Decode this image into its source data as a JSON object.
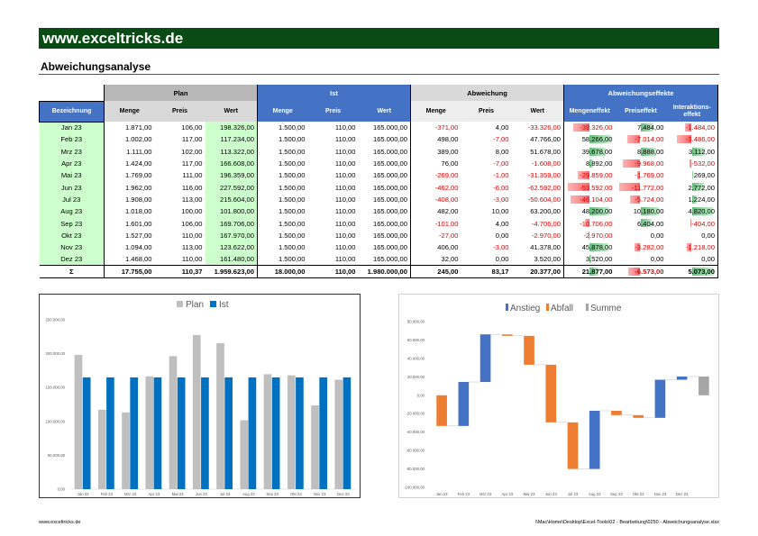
{
  "header": {
    "site": "www.exceltricks.de",
    "title": "Abweichungsanalyse"
  },
  "table": {
    "groups": {
      "plan": "Plan",
      "ist": "Ist",
      "abw": "Abweichung",
      "eff": "Abweichungseffekte"
    },
    "sub": {
      "bez": "Bezeichnung",
      "plan": [
        "Menge",
        "Preis",
        "Wert"
      ],
      "ist": [
        "Menge",
        "Preis",
        "Wert"
      ],
      "abw": [
        "Menge",
        "Preis",
        "Wert"
      ],
      "eff": [
        "Mengeneffekt",
        "Preiseffekt",
        "Interaktions-effekt"
      ]
    },
    "rows": [
      {
        "m": "Jan 23",
        "pm": "1.871,00",
        "pp": "106,00",
        "pw": "198.326,00",
        "im": "1.500,00",
        "ip": "110,00",
        "iw": "165.000,00",
        "am": "-371,00",
        "ap": "4,00",
        "aw": "-33.326,00",
        "me": "-39.326,00",
        "pe": "7.484,00",
        "ie": "-1.484,00",
        "mev": -39326,
        "pev": 7484,
        "iev": -1484
      },
      {
        "m": "Feb 23",
        "pm": "1.002,00",
        "pp": "117,00",
        "pw": "117.234,00",
        "im": "1.500,00",
        "ip": "110,00",
        "iw": "165.000,00",
        "am": "498,00",
        "ap": "-7,00",
        "aw": "47.766,00",
        "me": "58.266,00",
        "pe": "-7.014,00",
        "ie": "-3.486,00",
        "mev": 58266,
        "pev": -7014,
        "iev": -3486
      },
      {
        "m": "Mrz 23",
        "pm": "1.111,00",
        "pp": "102,00",
        "pw": "113.322,00",
        "im": "1.500,00",
        "ip": "110,00",
        "iw": "165.000,00",
        "am": "389,00",
        "ap": "8,00",
        "aw": "51.678,00",
        "me": "39.678,00",
        "pe": "8.888,00",
        "ie": "3.112,00",
        "mev": 39678,
        "pev": 8888,
        "iev": 3112
      },
      {
        "m": "Apr 23",
        "pm": "1.424,00",
        "pp": "117,00",
        "pw": "166.608,00",
        "im": "1.500,00",
        "ip": "110,00",
        "iw": "165.000,00",
        "am": "76,00",
        "ap": "-7,00",
        "aw": "-1.608,00",
        "me": "8.892,00",
        "pe": "-9.968,00",
        "ie": "-532,00",
        "mev": 8892,
        "pev": -9968,
        "iev": -532
      },
      {
        "m": "Mai 23",
        "pm": "1.769,00",
        "pp": "111,00",
        "pw": "196.359,00",
        "im": "1.500,00",
        "ip": "110,00",
        "iw": "165.000,00",
        "am": "-269,00",
        "ap": "-1,00",
        "aw": "-31.359,00",
        "me": "-29.859,00",
        "pe": "-1.769,00",
        "ie": "269,00",
        "mev": -29859,
        "pev": -1769,
        "iev": 269
      },
      {
        "m": "Jun 23",
        "pm": "1.962,00",
        "pp": "116,00",
        "pw": "227.592,00",
        "im": "1.500,00",
        "ip": "110,00",
        "iw": "165.000,00",
        "am": "-462,00",
        "ap": "-6,00",
        "aw": "-62.592,00",
        "me": "-53.592,00",
        "pe": "-11.772,00",
        "ie": "2.772,00",
        "mev": -53592,
        "pev": -11772,
        "iev": 2772
      },
      {
        "m": "Jul 23",
        "pm": "1.908,00",
        "pp": "113,00",
        "pw": "215.604,00",
        "im": "1.500,00",
        "ip": "110,00",
        "iw": "165.000,00",
        "am": "-408,00",
        "ap": "-3,00",
        "aw": "-50.604,00",
        "me": "-46.104,00",
        "pe": "-5.724,00",
        "ie": "1.224,00",
        "mev": -46104,
        "pev": -5724,
        "iev": 1224
      },
      {
        "m": "Aug 23",
        "pm": "1.018,00",
        "pp": "100,00",
        "pw": "101.800,00",
        "im": "1.500,00",
        "ip": "110,00",
        "iw": "165.000,00",
        "am": "482,00",
        "ap": "10,00",
        "aw": "63.200,00",
        "me": "48.200,00",
        "pe": "10.180,00",
        "ie": "4.820,00",
        "mev": 48200,
        "pev": 10180,
        "iev": 4820
      },
      {
        "m": "Sep 23",
        "pm": "1.601,00",
        "pp": "106,00",
        "pw": "169.706,00",
        "im": "1.500,00",
        "ip": "110,00",
        "iw": "165.000,00",
        "am": "-101,00",
        "ap": "4,00",
        "aw": "-4.706,00",
        "me": "-10.706,00",
        "pe": "6.404,00",
        "ie": "-404,00",
        "mev": -10706,
        "pev": 6404,
        "iev": -404
      },
      {
        "m": "Okt 23",
        "pm": "1.527,00",
        "pp": "110,00",
        "pw": "167.970,00",
        "im": "1.500,00",
        "ip": "110,00",
        "iw": "165.000,00",
        "am": "-27,00",
        "ap": "0,00",
        "aw": "-2.970,00",
        "me": "-2.970,00",
        "pe": "0,00",
        "ie": "0,00",
        "mev": -2970,
        "pev": 0,
        "iev": 0
      },
      {
        "m": "Nov 23",
        "pm": "1.094,00",
        "pp": "113,00",
        "pw": "123.622,00",
        "im": "1.500,00",
        "ip": "110,00",
        "iw": "165.000,00",
        "am": "406,00",
        "ap": "-3,00",
        "aw": "41.378,00",
        "me": "45.878,00",
        "pe": "-3.282,00",
        "ie": "-1.218,00",
        "mev": 45878,
        "pev": -3282,
        "iev": -1218
      },
      {
        "m": "Dez 23",
        "pm": "1.468,00",
        "pp": "110,00",
        "pw": "161.480,00",
        "im": "1.500,00",
        "ip": "110,00",
        "iw": "165.000,00",
        "am": "32,00",
        "ap": "0,00",
        "aw": "3.520,00",
        "me": "3.520,00",
        "pe": "0,00",
        "ie": "0,00",
        "mev": 3520,
        "pev": 0,
        "iev": 0
      }
    ],
    "sum": {
      "m": "Σ",
      "pm": "17.755,00",
      "pp": "110,37",
      "pw": "1.959.623,00",
      "im": "18.000,00",
      "ip": "110,00",
      "iw": "1.980.000,00",
      "am": "245,00",
      "ap": "83,17",
      "aw": "20.377,00",
      "me": "21.877,00",
      "pe": "-6.573,00",
      "ie": "5.073,00",
      "mev": 21877,
      "pev": -6573,
      "iev": 5073
    }
  },
  "chart_data": [
    {
      "type": "bar",
      "legend": [
        "Plan",
        "Ist"
      ],
      "categories": [
        "Jan 23",
        "Feb 23",
        "Mrz 23",
        "Apr 23",
        "Mai 23",
        "Jun 23",
        "Jul 23",
        "Aug 23",
        "Sep 23",
        "Okt 23",
        "Nov 23",
        "Dez 23"
      ],
      "series": [
        {
          "name": "Plan",
          "color": "#bfbfbf",
          "values": [
            198326,
            117234,
            113322,
            166608,
            196359,
            227592,
            215604,
            101800,
            169706,
            167970,
            123622,
            161480
          ]
        },
        {
          "name": "Ist",
          "color": "#0070c0",
          "values": [
            165000,
            165000,
            165000,
            165000,
            165000,
            165000,
            165000,
            165000,
            165000,
            165000,
            165000,
            165000
          ]
        }
      ],
      "ylim": [
        0,
        250000
      ],
      "yticks": [
        "0,00",
        "50.000,00",
        "100.000,00",
        "150.000,00",
        "200.000,00",
        "250.000,00"
      ]
    },
    {
      "type": "waterfall",
      "legend": [
        "Anstieg",
        "Abfall",
        "Summe"
      ],
      "colors": {
        "Anstieg": "#4472c4",
        "Abfall": "#ed7d31",
        "Summe": "#a5a5a5"
      },
      "categories": [
        "Jan 23",
        "Feb 23",
        "Mrz 23",
        "Apr 23",
        "Mai 23",
        "Jun 23",
        "Jul 23",
        "Aug 23",
        "Sep 23",
        "Okt 23",
        "Nov 23",
        "Dez 23"
      ],
      "values": [
        -33326,
        47766,
        51678,
        -1608,
        -31359,
        -62592,
        -50604,
        63200,
        -4706,
        -2970,
        41378,
        3520
      ],
      "total": 20377,
      "ylim": [
        -100000,
        80000
      ],
      "yticks": [
        "80.000,00",
        "60.000,00",
        "40.000,00",
        "20.000,00",
        "0,00",
        "-20.000,00",
        "-40.000,00",
        "-60.000,00",
        "-80.000,00",
        "-100.000,00"
      ]
    }
  ],
  "footer": {
    "left": "www.exceltricks.de",
    "right": "\\\\Mac\\Home\\Desktop\\Excel-Tools\\02 - Bearbeitung\\0250 - Abweichungsanalyse.xlsx"
  }
}
